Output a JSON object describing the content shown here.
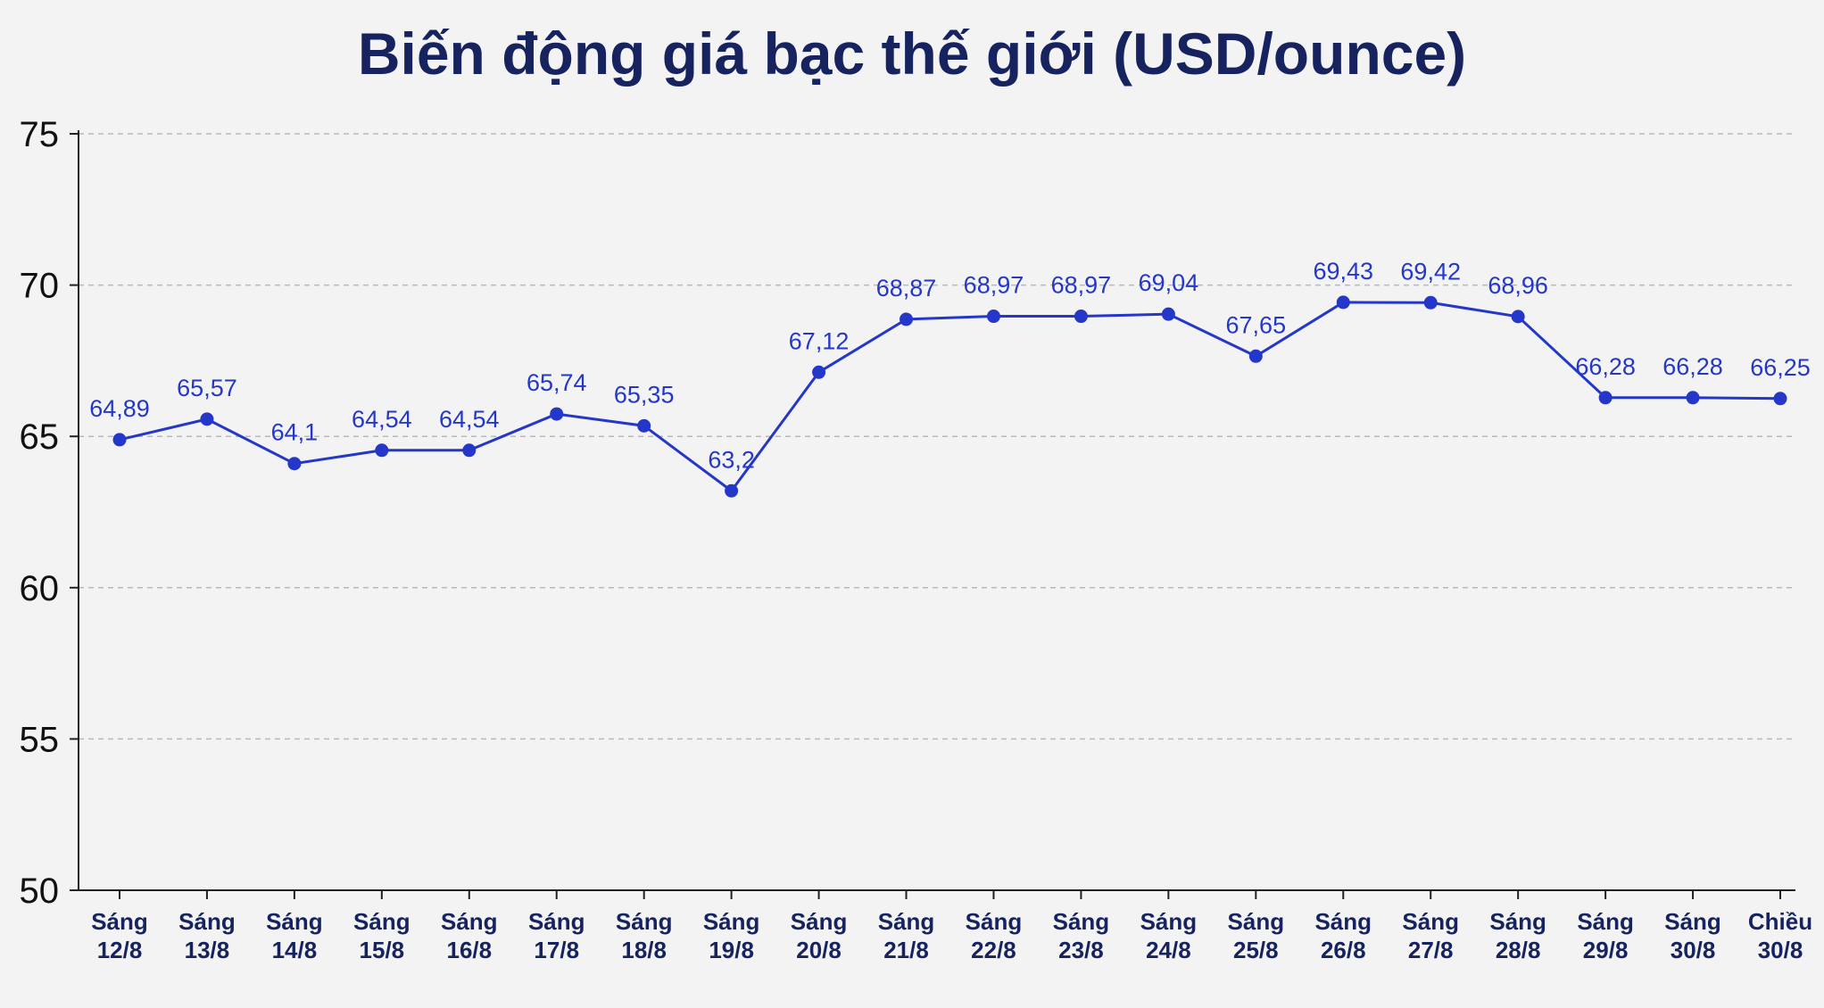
{
  "chart_data": {
    "type": "line",
    "title": "Biến động giá bạc thế giới (USD/ounce)",
    "xlabel": "",
    "ylabel": "",
    "ylim": [
      50,
      75
    ],
    "yticks": [
      50,
      55,
      60,
      65,
      70,
      75
    ],
    "grid": true,
    "categories": [
      [
        "Sáng",
        "12/8"
      ],
      [
        "Sáng",
        "13/8"
      ],
      [
        "Sáng",
        "14/8"
      ],
      [
        "Sáng",
        "15/8"
      ],
      [
        "Sáng",
        "16/8"
      ],
      [
        "Sáng",
        "17/8"
      ],
      [
        "Sáng",
        "18/8"
      ],
      [
        "Sáng",
        "19/8"
      ],
      [
        "Sáng",
        "20/8"
      ],
      [
        "Sáng",
        "21/8"
      ],
      [
        "Sáng",
        "22/8"
      ],
      [
        "Sáng",
        "23/8"
      ],
      [
        "Sáng",
        "24/8"
      ],
      [
        "Sáng",
        "25/8"
      ],
      [
        "Sáng",
        "26/8"
      ],
      [
        "Sáng",
        "27/8"
      ],
      [
        "Sáng",
        "28/8"
      ],
      [
        "Sáng",
        "29/8"
      ],
      [
        "Sáng",
        "30/8"
      ],
      [
        "Chiều",
        "30/8"
      ]
    ],
    "series": [
      {
        "values": [
          64.89,
          65.57,
          64.1,
          64.54,
          64.54,
          65.74,
          65.35,
          63.2,
          67.12,
          68.87,
          68.97,
          68.97,
          69.04,
          67.65,
          69.43,
          69.42,
          68.96,
          66.28,
          66.28,
          66.25
        ],
        "labels": [
          "64,89",
          "65,57",
          "64,1",
          "64,54",
          "64,54",
          "65,74",
          "65,35",
          "63,2",
          "67,12",
          "68,87",
          "68,97",
          "68,97",
          "69,04",
          "67,65",
          "69,43",
          "69,42",
          "68,96",
          "66,28",
          "66,28",
          "66,25"
        ],
        "color": "#2437c9"
      }
    ]
  }
}
